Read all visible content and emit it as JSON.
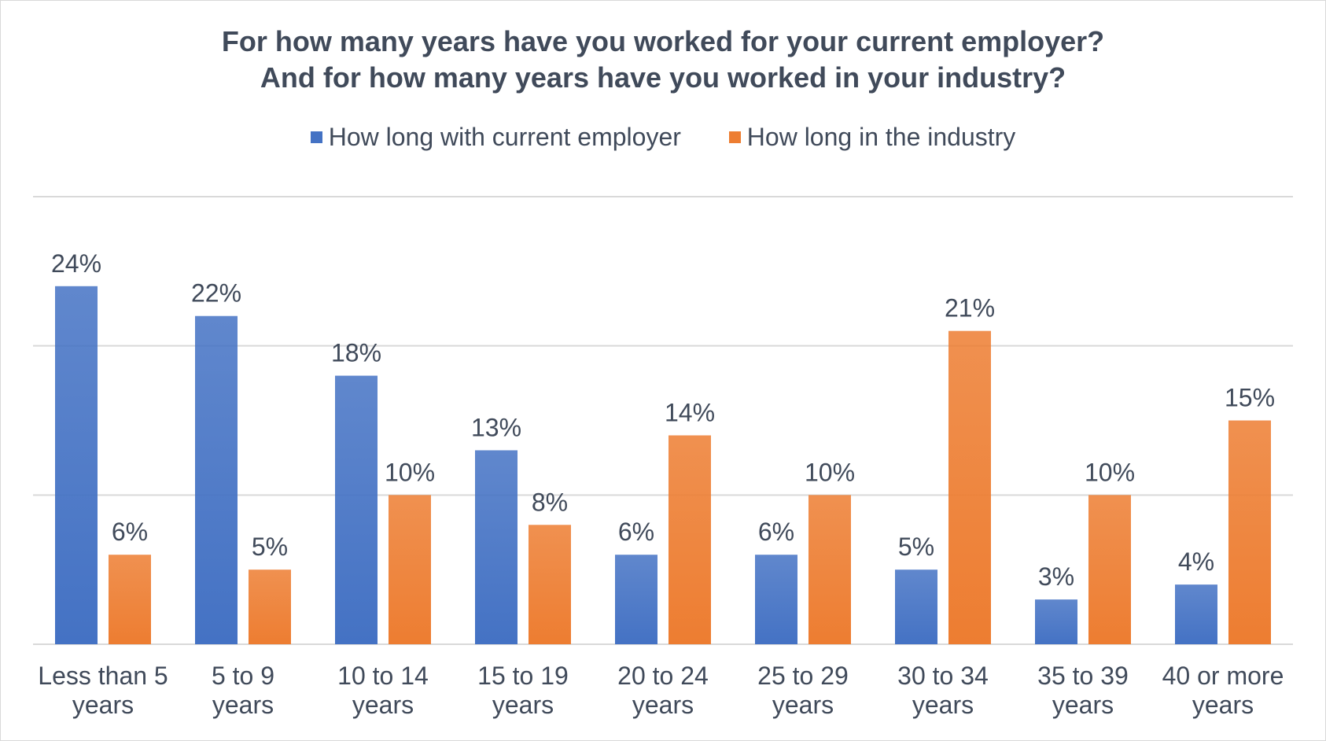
{
  "chart_data": {
    "type": "bar",
    "title": "For how many years have you worked for your current employer?\nAnd for how many years have you worked in your industry?",
    "title_lines": [
      "For how many years have you worked for your current employer?",
      "And for how many years have you worked in your industry?"
    ],
    "categories": [
      [
        "Less than 5",
        "years"
      ],
      [
        "5 to 9",
        "years"
      ],
      [
        "10 to 14",
        "years"
      ],
      [
        "15 to 19",
        "years"
      ],
      [
        "20 to 24",
        "years"
      ],
      [
        "25 to 29",
        "years"
      ],
      [
        "30 to 34",
        "years"
      ],
      [
        "35 to 39",
        "years"
      ],
      [
        "40 or more",
        "years"
      ]
    ],
    "series": [
      {
        "name": "How long with current employer",
        "color": "#4472c4",
        "values": [
          24,
          22,
          18,
          13,
          6,
          6,
          5,
          3,
          4
        ],
        "labels": [
          "24%",
          "22%",
          "18%",
          "13%",
          "6%",
          "6%",
          "5%",
          "3%",
          "4%"
        ]
      },
      {
        "name": "How long in the industry",
        "color": "#ed7d31",
        "values": [
          6,
          5,
          10,
          8,
          14,
          10,
          21,
          10,
          15
        ],
        "labels": [
          "6%",
          "5%",
          "10%",
          "8%",
          "14%",
          "10%",
          "21%",
          "10%",
          "15%"
        ]
      }
    ],
    "ylim": [
      0,
      30
    ],
    "gridlines": [
      0,
      10,
      20,
      30
    ],
    "legend_position": "top",
    "xlabel": "",
    "ylabel": ""
  }
}
